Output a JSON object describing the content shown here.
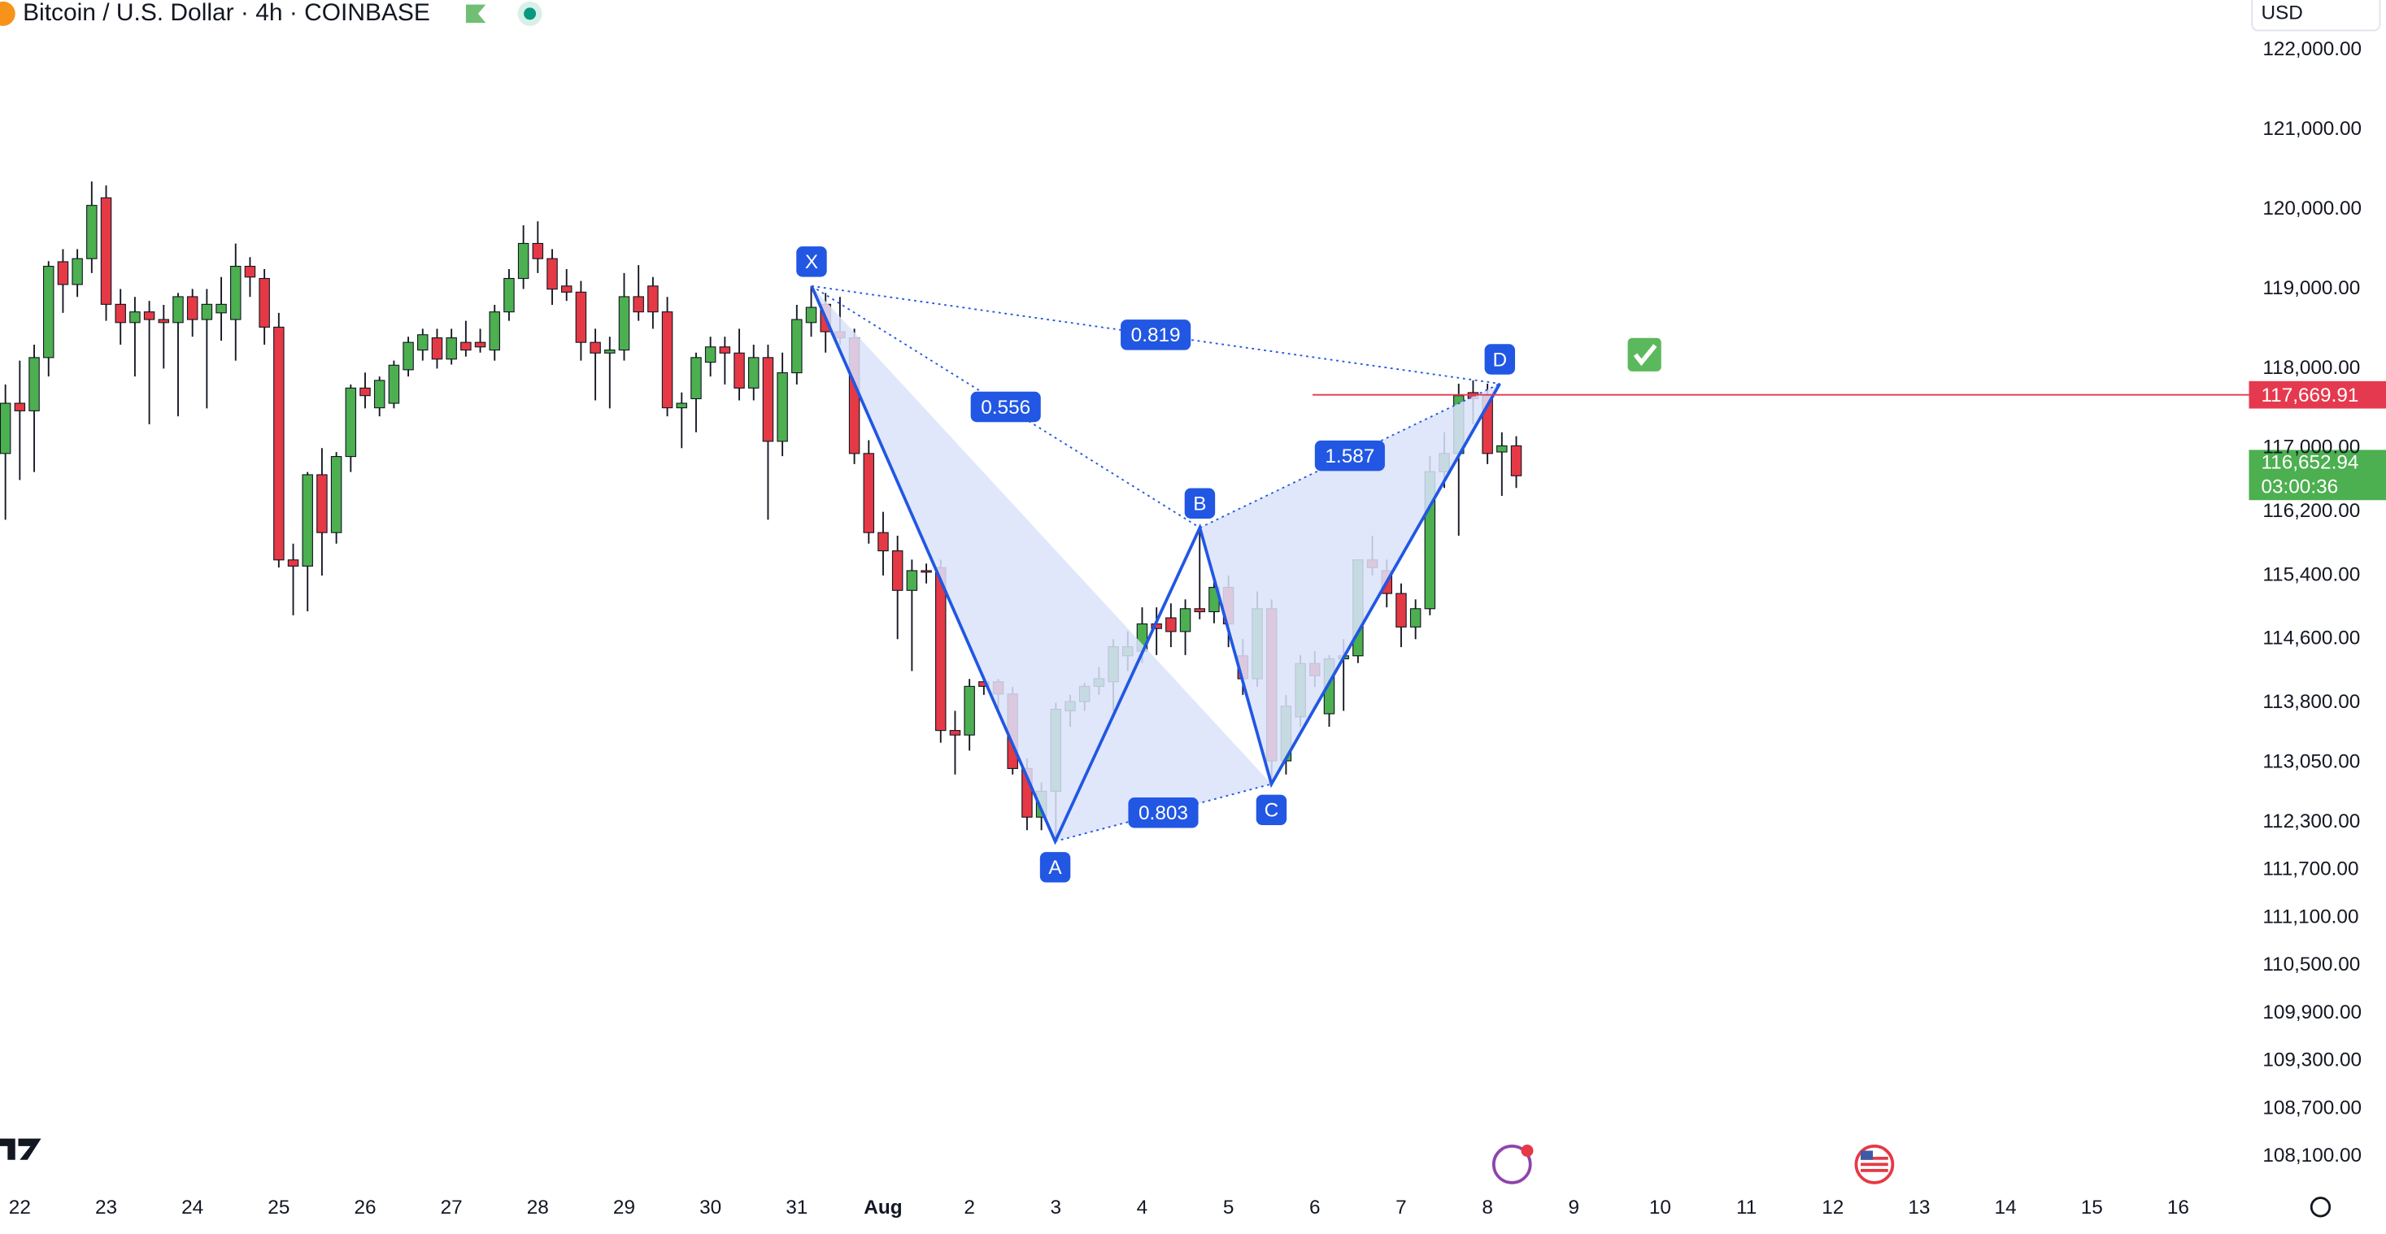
{
  "chart_data": {
    "type": "candlestick",
    "title": "Bitcoin / U.S. Dollar · 4h · COINBASE",
    "currency": "USD",
    "up_color": "#4caf50",
    "down_color": "#e53945",
    "categories": [
      "22",
      "23",
      "24",
      "25",
      "26",
      "27",
      "28",
      "29",
      "30",
      "31",
      "Aug",
      "2",
      "3",
      "4",
      "5",
      "6",
      "7",
      "8",
      "9",
      "10",
      "11",
      "12",
      "13",
      "14",
      "15",
      "16"
    ],
    "candles": [
      [
        116933,
        117800,
        116100,
        117564
      ],
      [
        117564,
        118100,
        116600,
        117469
      ],
      [
        117469,
        118300,
        116700,
        118138
      ],
      [
        118138,
        119350,
        117900,
        119285
      ],
      [
        119342,
        119500,
        118700,
        119056
      ],
      [
        119056,
        119500,
        118900,
        119381
      ],
      [
        119381,
        120350,
        119200,
        120050
      ],
      [
        120145,
        120300,
        118600,
        118807
      ],
      [
        118807,
        119000,
        118300,
        118578
      ],
      [
        118578,
        118900,
        117900,
        118712
      ],
      [
        118712,
        118850,
        117300,
        118616
      ],
      [
        118616,
        118800,
        118000,
        118578
      ],
      [
        118578,
        118950,
        117400,
        118903
      ],
      [
        118903,
        119000,
        118400,
        118616
      ],
      [
        118616,
        119000,
        117500,
        118807
      ],
      [
        118700,
        119150,
        118350,
        118807
      ],
      [
        118616,
        119570,
        118100,
        119285
      ],
      [
        119285,
        119400,
        118900,
        119150
      ],
      [
        119132,
        119250,
        118300,
        118520
      ],
      [
        118520,
        118700,
        115500,
        115596
      ],
      [
        115596,
        115800,
        114900,
        115518
      ],
      [
        115518,
        116700,
        114950,
        116666
      ],
      [
        116666,
        117000,
        115400,
        115939
      ],
      [
        115939,
        116950,
        115800,
        116895
      ],
      [
        116895,
        117800,
        116700,
        117755
      ],
      [
        117755,
        117950,
        117500,
        117660
      ],
      [
        117507,
        117900,
        117400,
        117851
      ],
      [
        117564,
        118100,
        117500,
        118042
      ],
      [
        117985,
        118400,
        117900,
        118329
      ],
      [
        118233,
        118500,
        118100,
        118425
      ],
      [
        118386,
        118500,
        118000,
        118119
      ],
      [
        118119,
        118500,
        118050,
        118386
      ],
      [
        118329,
        118600,
        118150,
        118233
      ],
      [
        118329,
        118500,
        118200,
        118272
      ],
      [
        118233,
        118800,
        118100,
        118712
      ],
      [
        118712,
        119250,
        118600,
        119132
      ],
      [
        119132,
        119800,
        119000,
        119572
      ],
      [
        119572,
        119850,
        119200,
        119381
      ],
      [
        119381,
        119500,
        118800,
        118998
      ],
      [
        119037,
        119250,
        118850,
        118960
      ],
      [
        118960,
        119100,
        118100,
        118329
      ],
      [
        118329,
        118500,
        117600,
        118195
      ],
      [
        118195,
        118400,
        117500,
        118233
      ],
      [
        118233,
        119200,
        118100,
        118903
      ],
      [
        118903,
        119300,
        118600,
        118712
      ],
      [
        119037,
        119150,
        118500,
        118712
      ],
      [
        118712,
        118900,
        117400,
        117507
      ],
      [
        117507,
        117700,
        117000,
        117564
      ],
      [
        117621,
        118200,
        117200,
        118138
      ],
      [
        118080,
        118400,
        117900,
        118272
      ],
      [
        118272,
        118400,
        117800,
        118195
      ],
      [
        118195,
        118500,
        117600,
        117755
      ],
      [
        117755,
        118300,
        117600,
        118138
      ],
      [
        118138,
        118300,
        116100,
        117086
      ],
      [
        117086,
        118200,
        116900,
        117947
      ],
      [
        117947,
        118800,
        117800,
        118616
      ],
      [
        118578,
        119037,
        118400,
        118769
      ],
      [
        118807,
        118950,
        118200,
        118463
      ],
      [
        118463,
        118900,
        118300,
        118386
      ],
      [
        118386,
        118500,
        116800,
        116933
      ],
      [
        116933,
        117100,
        115800,
        115939
      ],
      [
        115939,
        116200,
        115400,
        115710
      ],
      [
        115710,
        115900,
        114600,
        115213
      ],
      [
        115213,
        115600,
        114200,
        115461
      ],
      [
        115461,
        115550,
        115300,
        115442
      ],
      [
        115499,
        115600,
        113300,
        113453
      ],
      [
        113453,
        113700,
        112900,
        113396
      ],
      [
        113396,
        114100,
        113200,
        114007
      ],
      [
        114065,
        114150,
        113900,
        114007
      ],
      [
        114065,
        114100,
        113700,
        113911
      ],
      [
        113911,
        114000,
        112900,
        112975
      ],
      [
        112975,
        113100,
        112200,
        112364
      ],
      [
        112364,
        112800,
        112200,
        112689
      ],
      [
        112689,
        113800,
        112060,
        113720
      ],
      [
        113701,
        113900,
        113500,
        113816
      ],
      [
        113816,
        114050,
        113700,
        114007
      ],
      [
        114007,
        114250,
        113900,
        114103
      ],
      [
        114065,
        114600,
        113700,
        114505
      ],
      [
        114391,
        114700,
        114200,
        114505
      ],
      [
        114448,
        115000,
        114300,
        114792
      ],
      [
        114792,
        115000,
        114400,
        114734
      ],
      [
        114868,
        115050,
        114500,
        114696
      ],
      [
        114696,
        115100,
        114400,
        114983
      ],
      [
        114983,
        116000,
        114850,
        114945
      ],
      [
        114945,
        115400,
        114800,
        115251
      ],
      [
        115251,
        115400,
        114500,
        114792
      ],
      [
        114391,
        114600,
        113900,
        114103
      ],
      [
        114103,
        115200,
        114000,
        114983
      ],
      [
        114983,
        115100,
        112780,
        113071
      ],
      [
        113071,
        113900,
        112900,
        113758
      ],
      [
        113625,
        114400,
        113500,
        114294
      ],
      [
        114294,
        114450,
        114000,
        114141
      ],
      [
        113663,
        114400,
        113500,
        114353
      ],
      [
        114353,
        114600,
        113700,
        114391
      ],
      [
        114391,
        115600,
        114300,
        115596
      ],
      [
        115596,
        115900,
        115400,
        115499
      ],
      [
        115461,
        115600,
        115000,
        115174
      ],
      [
        115174,
        115300,
        114500,
        114753
      ],
      [
        114753,
        115100,
        114600,
        114983
      ],
      [
        114983,
        116900,
        114900,
        116704
      ],
      [
        116704,
        117200,
        116500,
        116933
      ],
      [
        116933,
        117810,
        115900,
        117660
      ],
      [
        117698,
        117850,
        117300,
        117621
      ],
      [
        117660,
        117810,
        116800,
        116933
      ],
      [
        116952,
        117200,
        116400,
        117029
      ],
      [
        117029,
        117150,
        116500,
        116652.94
      ]
    ],
    "ylim": [
      107810,
      122630
    ],
    "yticks": [
      {
        "value": 122000,
        "label": "122,000.00"
      },
      {
        "value": 121000,
        "label": "121,000.00"
      },
      {
        "value": 120000,
        "label": "120,000.00"
      },
      {
        "value": 119000,
        "label": "119,000.00"
      },
      {
        "value": 118000,
        "label": "118,000.00"
      },
      {
        "value": 117000,
        "label": "117,000.00"
      },
      {
        "value": 116200,
        "label": "116,200.00"
      },
      {
        "value": 115400,
        "label": "115,400.00"
      },
      {
        "value": 114600,
        "label": "114,600.00"
      },
      {
        "value": 113800,
        "label": "113,800.00"
      },
      {
        "value": 113050,
        "label": "113,050.00"
      },
      {
        "value": 112300,
        "label": "112,300.00"
      },
      {
        "value": 111700,
        "label": "111,700.00"
      },
      {
        "value": 111100,
        "label": "111,100.00"
      },
      {
        "value": 110500,
        "label": "110,500.00"
      },
      {
        "value": 109900,
        "label": "109,900.00"
      },
      {
        "value": 109300,
        "label": "109,300.00"
      },
      {
        "value": 108700,
        "label": "108,700.00"
      },
      {
        "value": 108100,
        "label": "108,100.00"
      }
    ],
    "pattern": {
      "color": "#2157e3",
      "points": [
        {
          "label": "X",
          "price": 119037
        },
        {
          "label": "A",
          "price": 112060
        },
        {
          "label": "B",
          "price": 116000
        },
        {
          "label": "C",
          "price": 112780
        },
        {
          "label": "D",
          "price": 117810
        }
      ],
      "ratios": [
        0.556,
        0.819,
        1.587,
        0.803
      ]
    },
    "price_lines": [
      {
        "value": 117669.91,
        "label": "117,669.91",
        "color": "#e5394f"
      },
      {
        "value": 116652.94,
        "label": "116,652.94",
        "countdown": "03:00:36",
        "color": "#4caf50"
      }
    ]
  }
}
